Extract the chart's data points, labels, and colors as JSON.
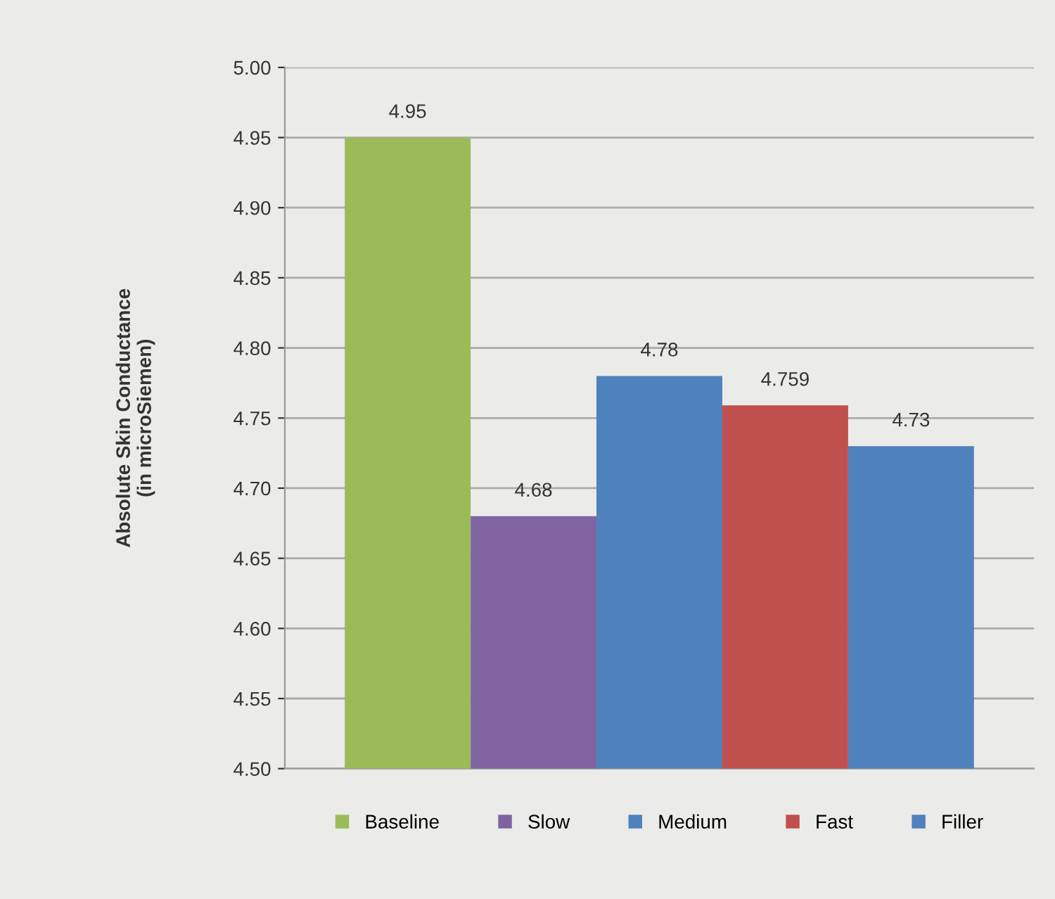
{
  "chart_data": {
    "type": "bar",
    "ylabel": "Absolute Skin Conductance\n(in microSiemen)",
    "categories": [
      null
    ],
    "series": [
      {
        "name": "Baseline",
        "color": "#9bbb59",
        "values": [
          4.95
        ]
      },
      {
        "name": "Slow",
        "color": "#8064a2",
        "values": [
          4.68
        ]
      },
      {
        "name": "Medium",
        "color": "#4f81bd",
        "values": [
          4.78
        ]
      },
      {
        "name": "Fast",
        "color": "#c0504d",
        "values": [
          4.759
        ]
      },
      {
        "name": "Filler",
        "color": "#4f81bd",
        "values": [
          4.73
        ]
      }
    ],
    "ylim": [
      4.5,
      5.0
    ],
    "yticks": [
      {
        "value": 4.5,
        "label": "4.50"
      },
      {
        "value": 4.55,
        "label": "4.55"
      },
      {
        "value": 4.6,
        "label": "4.60"
      },
      {
        "value": 4.65,
        "label": "4.65"
      },
      {
        "value": 4.7,
        "label": "4.70"
      },
      {
        "value": 4.75,
        "label": "4.75"
      },
      {
        "value": 4.8,
        "label": "4.80"
      },
      {
        "value": 4.85,
        "label": "4.85"
      },
      {
        "value": 4.9,
        "label": "4.90"
      },
      {
        "value": 4.95,
        "label": "4.95"
      },
      {
        "value": 5.0,
        "label": "5.00"
      }
    ],
    "grid": "y",
    "legend": "bottom",
    "data_labels": true
  }
}
